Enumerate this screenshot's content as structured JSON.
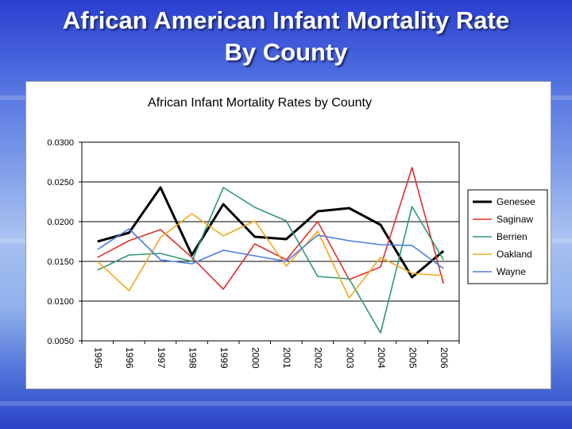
{
  "slide": {
    "title_line1": "African American Infant Mortality Rate",
    "title_line2": "By County"
  },
  "chart_data": {
    "type": "line",
    "title": "African Infant Mortality Rates by County",
    "xlabel": "",
    "ylabel": "",
    "categories": [
      "1995",
      "1996",
      "1997",
      "1998",
      "1999",
      "2000",
      "2001",
      "2002",
      "2003",
      "2004",
      "2005",
      "2006"
    ],
    "ylim": [
      0.005,
      0.03
    ],
    "yticks": [
      "0.0300",
      "0.0250",
      "0.0200",
      "0.0150",
      "0.0100",
      "0.0050"
    ],
    "ytick_values": [
      0.03,
      0.025,
      0.02,
      0.015,
      0.01,
      0.005
    ],
    "grid": "horizontal",
    "legend_position": "right",
    "series": [
      {
        "name": "Genesee",
        "color": "#000000",
        "values": [
          0.0175,
          0.0186,
          0.0243,
          0.0158,
          0.0222,
          0.0181,
          0.0178,
          0.0213,
          0.0217,
          0.0196,
          0.013,
          0.0163
        ]
      },
      {
        "name": "Saginaw",
        "color": "#e0302a",
        "values": [
          0.0155,
          0.0176,
          0.019,
          0.0155,
          0.0115,
          0.0172,
          0.0152,
          0.02,
          0.0127,
          0.0143,
          0.0268,
          0.0122
        ]
      },
      {
        "name": "Berrien",
        "color": "#2e9a6a",
        "values": [
          0.0139,
          0.0158,
          0.016,
          0.015,
          0.0243,
          0.0218,
          0.0201,
          0.0131,
          0.0128,
          0.006,
          0.0219,
          0.0152
        ]
      },
      {
        "name": "Oakland",
        "color": "#f0a820",
        "values": [
          0.015,
          0.0113,
          0.018,
          0.021,
          0.0182,
          0.0201,
          0.0144,
          0.0188,
          0.0104,
          0.0155,
          0.0135,
          0.0132
        ]
      },
      {
        "name": "Wayne",
        "color": "#4a7ce0",
        "values": [
          0.0165,
          0.0191,
          0.0152,
          0.0147,
          0.0164,
          0.0157,
          0.015,
          0.0183,
          0.0176,
          0.0171,
          0.017,
          0.0141
        ]
      }
    ]
  }
}
